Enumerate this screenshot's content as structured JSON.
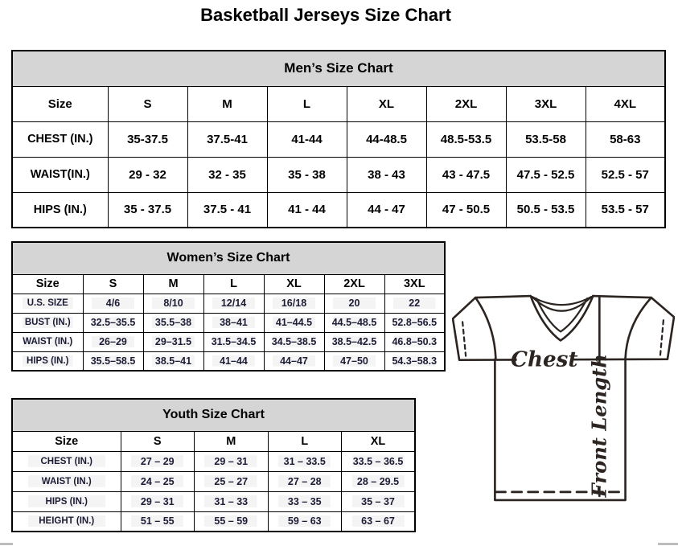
{
  "page": {
    "title": "Basketball Jerseys Size Chart"
  },
  "tables": {
    "men": {
      "title": "Men’s Size Chart",
      "columns": [
        "Size",
        "S",
        "M",
        "L",
        "XL",
        "2XL",
        "3XL",
        "4XL"
      ],
      "rows": [
        {
          "label": "CHEST (IN.)",
          "values": [
            "35-37.5",
            "37.5-41",
            "41-44",
            "44-48.5",
            "48.5-53.5",
            "53.5-58",
            "58-63"
          ]
        },
        {
          "label": "WAIST(IN.)",
          "values": [
            "29 - 32",
            "32 - 35",
            "35 - 38",
            "38 - 43",
            "43 - 47.5",
            "47.5 - 52.5",
            "52.5 - 57"
          ]
        },
        {
          "label": "HIPS (IN.)",
          "values": [
            "35 - 37.5",
            "37.5 - 41",
            "41 - 44",
            "44 - 47",
            "47 - 50.5",
            "50.5 - 53.5",
            "53.5 - 57"
          ]
        }
      ]
    },
    "women": {
      "title": "Women’s Size Chart",
      "columns": [
        "Size",
        "S",
        "M",
        "L",
        "XL",
        "2XL",
        "3XL"
      ],
      "rows": [
        {
          "label": "U.S. SIZE",
          "values": [
            "4/6",
            "8/10",
            "12/14",
            "16/18",
            "20",
            "22"
          ]
        },
        {
          "label": "BUST (IN.)",
          "values": [
            "32.5–35.5",
            "35.5–38",
            "38–41",
            "41–44.5",
            "44.5–48.5",
            "52.8–56.5"
          ]
        },
        {
          "label": "WAIST (IN.)",
          "values": [
            "26–29",
            "29–31.5",
            "31.5–34.5",
            "34.5–38.5",
            "38.5–42.5",
            "46.8–50.3"
          ]
        },
        {
          "label": "HIPS (IN.)",
          "values": [
            "35.5–58.5",
            "38.5–41",
            "41–44",
            "44–47",
            "47–50",
            "54.3–58.3"
          ]
        }
      ]
    },
    "youth": {
      "title": "Youth Size Chart",
      "columns": [
        "Size",
        "S",
        "M",
        "L",
        "XL"
      ],
      "rows": [
        {
          "label": "CHEST (IN.)",
          "values": [
            "27 – 29",
            "29 – 31",
            "31 – 33.5",
            "33.5 – 36.5"
          ]
        },
        {
          "label": "WAIST (IN.)",
          "values": [
            "24 – 25",
            "25 – 27",
            "27 – 28",
            "28 – 29.5"
          ]
        },
        {
          "label": "HIPS (IN.)",
          "values": [
            "29 – 31",
            "31 – 33",
            "33 – 35",
            "35 – 37"
          ]
        },
        {
          "label": "HEIGHT (IN.)",
          "values": [
            "51 – 55",
            "55 – 59",
            "59 – 63",
            "63 – 67"
          ]
        }
      ]
    }
  },
  "diagram": {
    "chest_label": "Chest",
    "front_length_label": "Front Length"
  },
  "colors": {
    "table_header_bg": "#d5d5d5",
    "table_border": "#000000",
    "diagram_line": "#2b2420"
  }
}
